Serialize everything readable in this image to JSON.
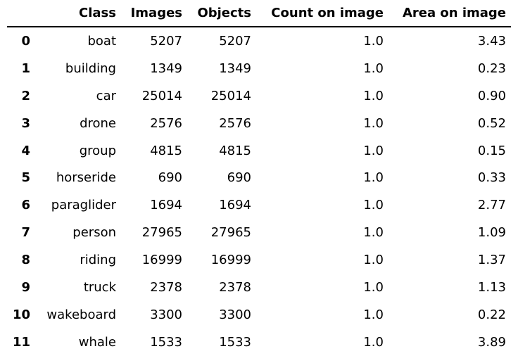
{
  "table": {
    "columns": [
      "",
      "Class",
      "Images",
      "Objects",
      "Count on image",
      "Area on image"
    ],
    "rows": [
      [
        "0",
        "boat",
        "5207",
        "5207",
        "1.0",
        "3.43"
      ],
      [
        "1",
        "building",
        "1349",
        "1349",
        "1.0",
        "0.23"
      ],
      [
        "2",
        "car",
        "25014",
        "25014",
        "1.0",
        "0.90"
      ],
      [
        "3",
        "drone",
        "2576",
        "2576",
        "1.0",
        "0.52"
      ],
      [
        "4",
        "group",
        "4815",
        "4815",
        "1.0",
        "0.15"
      ],
      [
        "5",
        "horseride",
        "690",
        "690",
        "1.0",
        "0.33"
      ],
      [
        "6",
        "paraglider",
        "1694",
        "1694",
        "1.0",
        "2.77"
      ],
      [
        "7",
        "person",
        "27965",
        "27965",
        "1.0",
        "1.09"
      ],
      [
        "8",
        "riding",
        "16999",
        "16999",
        "1.0",
        "1.37"
      ],
      [
        "9",
        "truck",
        "2378",
        "2378",
        "1.0",
        "1.13"
      ],
      [
        "10",
        "wakeboard",
        "3300",
        "3300",
        "1.0",
        "0.22"
      ],
      [
        "11",
        "whale",
        "1533",
        "1533",
        "1.0",
        "3.89"
      ]
    ]
  }
}
